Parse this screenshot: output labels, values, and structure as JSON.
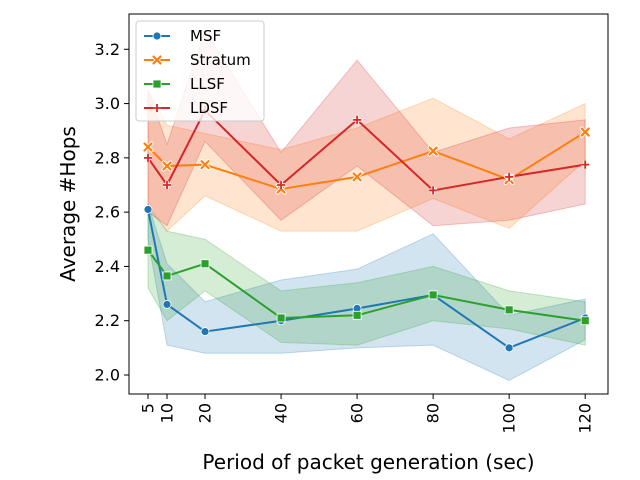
{
  "chart_data": {
    "type": "line",
    "xlabel": "Period of packet generation (sec)",
    "ylabel": "Average #Hops",
    "x": [
      5,
      10,
      20,
      40,
      60,
      80,
      100,
      120
    ],
    "x_ticks": [
      "5",
      "10",
      "20",
      "40",
      "60",
      "80",
      "100",
      "120"
    ],
    "y_ticks": [
      "2.0",
      "2.2",
      "2.4",
      "2.6",
      "2.8",
      "3.0",
      "3.2"
    ],
    "xlim": [
      0,
      126
    ],
    "ylim": [
      1.93,
      3.33
    ],
    "grid": false,
    "legend_position": "top-left",
    "series": [
      {
        "name": "MSF",
        "color": "#1f77b4",
        "marker": "circle",
        "values": [
          2.61,
          2.26,
          2.16,
          2.2,
          2.245,
          2.295,
          2.1,
          2.21
        ],
        "ci_lower": [
          2.5,
          2.11,
          2.08,
          2.08,
          2.1,
          2.11,
          1.98,
          2.13
        ],
        "ci_upper": [
          2.63,
          2.41,
          2.27,
          2.35,
          2.39,
          2.52,
          2.22,
          2.28
        ]
      },
      {
        "name": "Stratum",
        "color": "#ff7f0e",
        "marker": "x",
        "values": [
          2.84,
          2.77,
          2.775,
          2.685,
          2.73,
          2.825,
          2.72,
          2.895
        ],
        "ci_lower": [
          2.63,
          2.53,
          2.66,
          2.53,
          2.53,
          2.65,
          2.54,
          2.79
        ],
        "ci_upper": [
          3.05,
          2.92,
          2.89,
          2.83,
          2.91,
          3.02,
          2.87,
          3.0
        ]
      },
      {
        "name": "LLSF",
        "color": "#2ca02c",
        "marker": "square",
        "values": [
          2.46,
          2.365,
          2.41,
          2.21,
          2.22,
          2.295,
          2.24,
          2.2
        ],
        "ci_lower": [
          2.32,
          2.2,
          2.31,
          2.12,
          2.11,
          2.2,
          2.17,
          2.11
        ],
        "ci_upper": [
          2.62,
          2.53,
          2.5,
          2.31,
          2.34,
          2.4,
          2.31,
          2.27
        ]
      },
      {
        "name": "LDSF",
        "color": "#d62728",
        "marker": "plus",
        "values": [
          2.8,
          2.7,
          2.975,
          2.7,
          2.94,
          2.68,
          2.73,
          2.775
        ],
        "ci_lower": [
          2.6,
          2.55,
          2.86,
          2.57,
          2.77,
          2.55,
          2.57,
          2.63
        ],
        "ci_upper": [
          3.05,
          2.85,
          3.27,
          2.82,
          3.16,
          2.82,
          2.91,
          2.94
        ]
      }
    ]
  }
}
